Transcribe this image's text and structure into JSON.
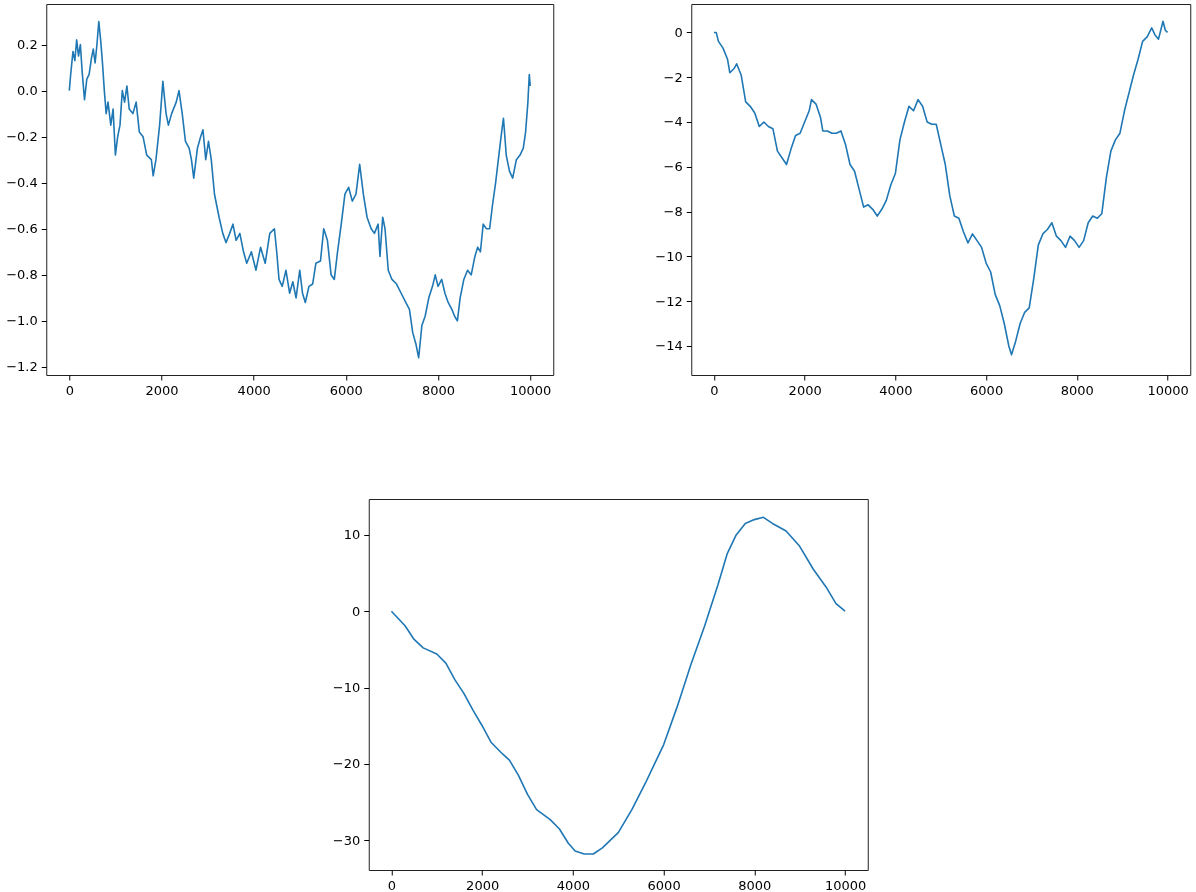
{
  "chart_data": [
    {
      "type": "line",
      "xlim": [
        -500,
        10500
      ],
      "ylim": [
        -1.235,
        0.376
      ],
      "xticks": [
        0,
        2000,
        4000,
        6000,
        8000,
        10000
      ],
      "yticks": [
        -1.2,
        {
          "value": -1.0,
          "label": "−1.0"
        },
        -0.8,
        -0.6,
        -0.4,
        -0.2,
        {
          "value": 0.0,
          "label": "0.0"
        },
        0.2
      ],
      "grid": false,
      "series": [
        {
          "color": "#1f77b4",
          "x": [
            0,
            30,
            80,
            120,
            160,
            200,
            240,
            280,
            330,
            380,
            430,
            480,
            520,
            560,
            600,
            640,
            680,
            720,
            760,
            800,
            840,
            900,
            950,
            1000,
            1050,
            1100,
            1150,
            1200,
            1250,
            1300,
            1380,
            1450,
            1520,
            1600,
            1680,
            1780,
            1820,
            1880,
            1960,
            2030,
            2100,
            2150,
            2220,
            2320,
            2380,
            2450,
            2520,
            2600,
            2650,
            2700,
            2780,
            2850,
            2900,
            2960,
            3020,
            3080,
            3150,
            3250,
            3330,
            3400,
            3480,
            3550,
            3620,
            3700,
            3780,
            3850,
            3950,
            4050,
            4150,
            4250,
            4350,
            4450,
            4500,
            4550,
            4620,
            4700,
            4780,
            4850,
            4920,
            5000,
            5060,
            5120,
            5200,
            5280,
            5350,
            5450,
            5520,
            5600,
            5680,
            5750,
            5820,
            5900,
            5980,
            6060,
            6140,
            6220,
            6300,
            6380,
            6460,
            6550,
            6620,
            6700,
            6740,
            6800,
            6850,
            6920,
            7000,
            7100,
            7200,
            7300,
            7380,
            7450,
            7520,
            7580,
            7650,
            7720,
            7800,
            7880,
            7940,
            8000,
            8080,
            8150,
            8220,
            8300,
            8360,
            8420,
            8480,
            8560,
            8640,
            8720,
            8800,
            8860,
            8920,
            8980,
            9050,
            9120,
            9180,
            9250,
            9320,
            9380,
            9420,
            9480,
            9550,
            9620,
            9700,
            9780,
            9850,
            9900,
            9950,
            9980,
            10000
          ],
          "values": [
            0.0,
            0.07,
            0.17,
            0.13,
            0.22,
            0.15,
            0.2,
            0.08,
            -0.04,
            0.05,
            0.07,
            0.14,
            0.18,
            0.12,
            0.2,
            0.3,
            0.22,
            0.12,
            0.0,
            -0.1,
            -0.05,
            -0.15,
            -0.08,
            -0.28,
            -0.2,
            -0.15,
            0.0,
            -0.05,
            0.02,
            -0.08,
            -0.1,
            -0.05,
            -0.18,
            -0.2,
            -0.28,
            -0.3,
            -0.37,
            -0.3,
            -0.15,
            0.04,
            -0.1,
            -0.15,
            -0.1,
            -0.05,
            0.0,
            -0.1,
            -0.22,
            -0.25,
            -0.3,
            -0.38,
            -0.25,
            -0.2,
            -0.17,
            -0.3,
            -0.22,
            -0.3,
            -0.45,
            -0.55,
            -0.62,
            -0.66,
            -0.62,
            -0.58,
            -0.65,
            -0.62,
            -0.7,
            -0.75,
            -0.7,
            -0.78,
            -0.68,
            -0.75,
            -0.62,
            -0.6,
            -0.7,
            -0.82,
            -0.85,
            -0.78,
            -0.88,
            -0.83,
            -0.9,
            -0.78,
            -0.88,
            -0.92,
            -0.85,
            -0.84,
            -0.75,
            -0.74,
            -0.6,
            -0.65,
            -0.8,
            -0.82,
            -0.7,
            -0.58,
            -0.45,
            -0.42,
            -0.48,
            -0.45,
            -0.32,
            -0.45,
            -0.55,
            -0.6,
            -0.62,
            -0.58,
            -0.72,
            -0.55,
            -0.6,
            -0.78,
            -0.82,
            -0.84,
            -0.88,
            -0.92,
            -0.95,
            -1.05,
            -1.1,
            -1.16,
            -1.02,
            -0.98,
            -0.9,
            -0.85,
            -0.8,
            -0.85,
            -0.82,
            -0.88,
            -0.92,
            -0.95,
            -0.98,
            -1.0,
            -0.9,
            -0.82,
            -0.78,
            -0.8,
            -0.72,
            -0.68,
            -0.7,
            -0.58,
            -0.6,
            -0.6,
            -0.5,
            -0.4,
            -0.28,
            -0.18,
            -0.12,
            -0.28,
            -0.35,
            -0.38,
            -0.3,
            -0.28,
            -0.25,
            -0.18,
            -0.05,
            0.07,
            0.02
          ]
        }
      ]
    },
    {
      "type": "line",
      "xlim": [
        -500,
        10500
      ],
      "ylim": [
        -15.3,
        1.27
      ],
      "xticks": [
        0,
        2000,
        4000,
        6000,
        8000,
        10000
      ],
      "yticks": [
        -14,
        -12,
        -10,
        -8,
        -6,
        -4,
        -2,
        0
      ],
      "grid": false,
      "series": [
        {
          "color": "#1f77b4",
          "x": [
            0,
            50,
            100,
            200,
            300,
            350,
            400,
            450,
            500,
            600,
            700,
            800,
            900,
            1000,
            1100,
            1200,
            1300,
            1400,
            1500,
            1600,
            1700,
            1800,
            1900,
            2000,
            2100,
            2150,
            2250,
            2350,
            2400,
            2500,
            2600,
            2700,
            2800,
            2900,
            3000,
            3100,
            3200,
            3300,
            3400,
            3500,
            3600,
            3700,
            3800,
            3900,
            4000,
            4100,
            4200,
            4300,
            4400,
            4500,
            4600,
            4700,
            4800,
            4900,
            5000,
            5100,
            5200,
            5300,
            5400,
            5500,
            5600,
            5700,
            5800,
            5900,
            6000,
            6100,
            6200,
            6300,
            6400,
            6500,
            6560,
            6650,
            6750,
            6850,
            6950,
            7050,
            7150,
            7250,
            7350,
            7450,
            7550,
            7650,
            7750,
            7850,
            7950,
            8050,
            8150,
            8250,
            8350,
            8450,
            8550,
            8650,
            8750,
            8850,
            8950,
            9050,
            9150,
            9250,
            9350,
            9450,
            9550,
            9650,
            9720,
            9800,
            9900,
            9950,
            10000
          ],
          "values": [
            0,
            0.0,
            -0.4,
            -0.7,
            -1.2,
            -1.8,
            -1.7,
            -1.6,
            -1.4,
            -1.9,
            -3.1,
            -3.3,
            -3.6,
            -4.2,
            -4.0,
            -4.2,
            -4.3,
            -5.3,
            -5.6,
            -5.9,
            -5.2,
            -4.6,
            -4.5,
            -4.0,
            -3.5,
            -3.0,
            -3.2,
            -3.8,
            -4.4,
            -4.4,
            -4.5,
            -4.5,
            -4.4,
            -5.0,
            -5.9,
            -6.2,
            -7.0,
            -7.8,
            -7.7,
            -7.9,
            -8.2,
            -7.9,
            -7.5,
            -6.8,
            -6.3,
            -4.8,
            -4.0,
            -3.3,
            -3.5,
            -3.0,
            -3.3,
            -4.0,
            -4.1,
            -4.1,
            -5.0,
            -5.9,
            -7.3,
            -8.2,
            -8.3,
            -8.9,
            -9.4,
            -9.0,
            -9.3,
            -9.6,
            -10.3,
            -10.7,
            -11.7,
            -12.2,
            -13.0,
            -14.0,
            -14.4,
            -13.8,
            -13.0,
            -12.5,
            -12.3,
            -11.0,
            -9.5,
            -9.0,
            -8.8,
            -8.5,
            -9.1,
            -9.3,
            -9.6,
            -9.1,
            -9.3,
            -9.6,
            -9.3,
            -8.5,
            -8.2,
            -8.3,
            -8.1,
            -6.5,
            -5.3,
            -4.8,
            -4.5,
            -3.5,
            -2.7,
            -1.9,
            -1.2,
            -0.4,
            -0.2,
            0.2,
            -0.1,
            -0.3,
            0.5,
            0.1,
            0.0
          ]
        }
      ]
    },
    {
      "type": "line",
      "xlim": [
        -500,
        10500
      ],
      "ylim": [
        -33.9,
        14.7
      ],
      "xticks": [
        0,
        2000,
        4000,
        6000,
        8000,
        10000
      ],
      "yticks": [
        -30,
        -20,
        -10,
        0,
        10
      ],
      "grid": false,
      "series": [
        {
          "color": "#1f77b4",
          "x": [
            0,
            300,
            500,
            700,
            1000,
            1200,
            1400,
            1600,
            1800,
            2000,
            2200,
            2450,
            2600,
            2800,
            3000,
            3200,
            3500,
            3700,
            3900,
            4050,
            4250,
            4450,
            4650,
            5000,
            5300,
            5600,
            5800,
            6000,
            6300,
            6600,
            6900,
            7200,
            7400,
            7600,
            7800,
            8000,
            8200,
            8400,
            8700,
            9000,
            9300,
            9600,
            9800,
            10000
          ],
          "values": [
            0,
            -1.9,
            -3.7,
            -4.8,
            -5.6,
            -6.8,
            -9.0,
            -10.8,
            -13.0,
            -15.0,
            -17.2,
            -18.7,
            -19.5,
            -21.5,
            -24.0,
            -26.0,
            -27.3,
            -28.5,
            -30.4,
            -31.4,
            -31.8,
            -31.8,
            -31.0,
            -29.0,
            -26.0,
            -22.5,
            -20.0,
            -17.5,
            -12.5,
            -7.0,
            -2.0,
            3.5,
            7.5,
            10.0,
            11.5,
            12.0,
            12.3,
            11.5,
            10.5,
            8.5,
            5.5,
            3.0,
            1.0,
            0.0
          ]
        }
      ]
    }
  ]
}
